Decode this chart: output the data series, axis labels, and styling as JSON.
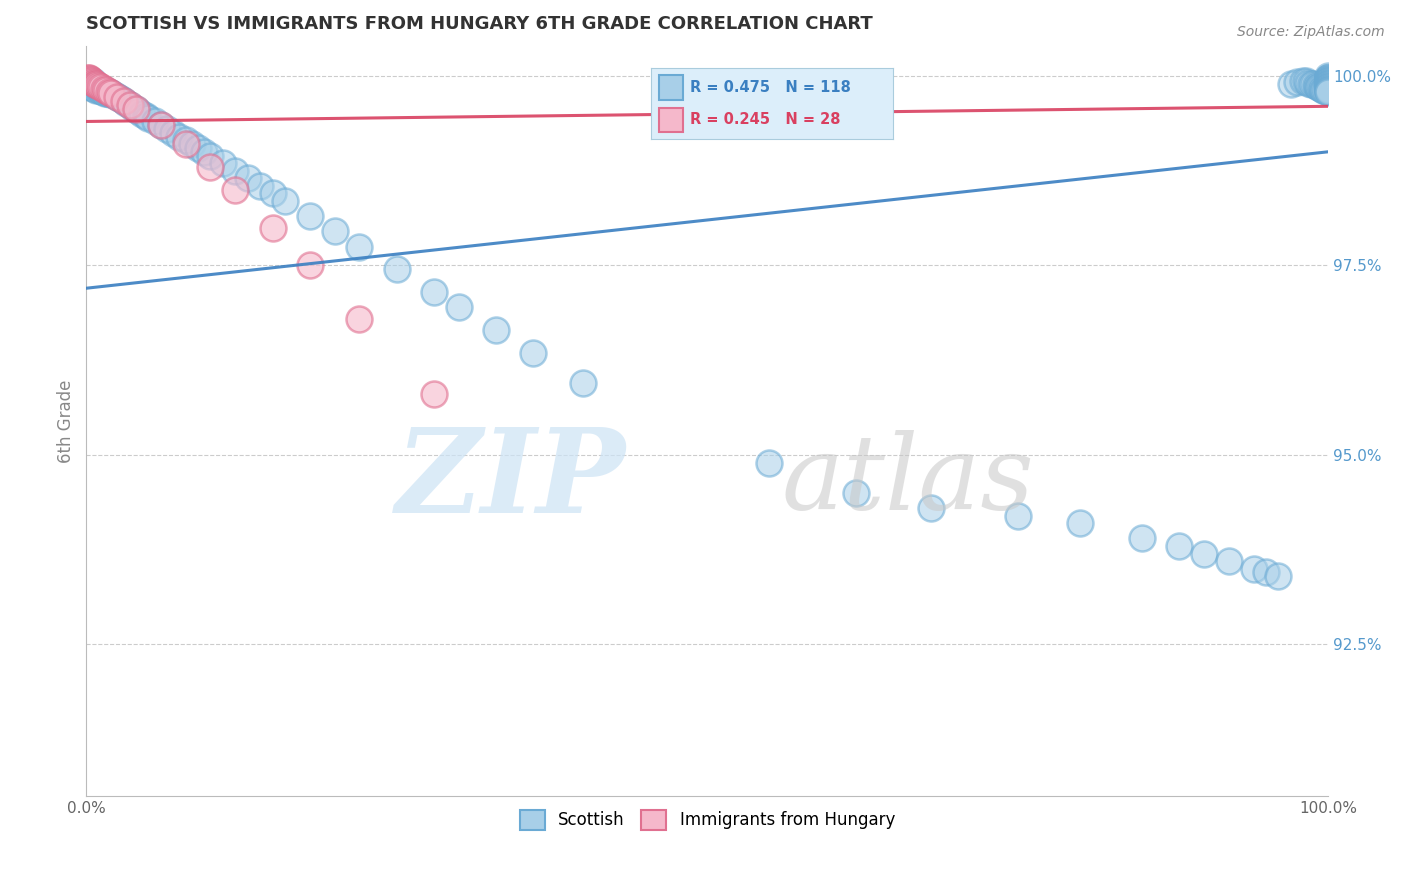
{
  "title": "SCOTTISH VS IMMIGRANTS FROM HUNGARY 6TH GRADE CORRELATION CHART",
  "source_text": "Source: ZipAtlas.com",
  "ylabel": "6th Grade",
  "legend_blue_label": "Scottish",
  "legend_pink_label": "Immigrants from Hungary",
  "legend_r_blue": "R = 0.475",
  "legend_n_blue": "N = 118",
  "legend_r_pink": "R = 0.245",
  "legend_n_pink": "N = 28",
  "blue_color": "#a8cfe8",
  "blue_edge": "#6aaad4",
  "pink_color": "#f5b8cb",
  "pink_edge": "#e07090",
  "blue_line_color": "#3a7fc1",
  "pink_line_color": "#d94060",
  "legend_bg": "#dceefa",
  "legend_text_blue": "#3a7fc1",
  "legend_text_pink": "#d94060",
  "right_tick_color": "#5599cc",
  "watermark_zip_color": "#cce0f0",
  "watermark_atlas_color": "#bbbbbb",
  "xlim": [
    0.0,
    1.0
  ],
  "ylim": [
    0.905,
    1.004
  ],
  "yticks": [
    1.0,
    0.975,
    0.95,
    0.925
  ],
  "ytick_labels": [
    "100.0%",
    "97.5%",
    "95.0%",
    "92.5%"
  ],
  "blue_x": [
    0.001,
    0.002,
    0.002,
    0.003,
    0.003,
    0.004,
    0.004,
    0.005,
    0.005,
    0.006,
    0.006,
    0.007,
    0.007,
    0.008,
    0.008,
    0.009,
    0.01,
    0.01,
    0.011,
    0.012,
    0.012,
    0.013,
    0.014,
    0.015,
    0.015,
    0.016,
    0.017,
    0.018,
    0.019,
    0.02,
    0.022,
    0.024,
    0.026,
    0.028,
    0.03,
    0.032,
    0.035,
    0.038,
    0.04,
    0.042,
    0.045,
    0.048,
    0.05,
    0.055,
    0.06,
    0.065,
    0.07,
    0.075,
    0.08,
    0.085,
    0.09,
    0.095,
    0.1,
    0.11,
    0.12,
    0.13,
    0.14,
    0.15,
    0.16,
    0.18,
    0.2,
    0.22,
    0.25,
    0.28,
    0.3,
    0.33,
    0.36,
    0.4,
    0.55,
    0.62,
    0.68,
    0.75,
    0.8,
    0.85,
    0.88,
    0.9,
    0.92,
    0.94,
    0.95,
    0.96,
    0.97,
    0.975,
    0.98,
    0.982,
    0.984,
    0.986,
    0.988,
    0.99,
    0.991,
    0.992,
    0.993,
    0.994,
    0.995,
    0.996,
    0.997,
    0.998,
    0.999,
    1.0,
    1.0,
    1.0,
    1.0,
    1.0,
    1.0,
    1.0,
    1.0,
    1.0,
    1.0,
    1.0,
    1.0,
    1.0,
    1.0,
    1.0,
    1.0,
    1.0,
    1.0,
    1.0,
    1.0,
    1.0
  ],
  "blue_y": [
    0.999,
    0.9992,
    0.9988,
    0.9991,
    0.9985,
    0.9989,
    0.9987,
    0.9993,
    0.9986,
    0.999,
    0.9984,
    0.9988,
    0.9983,
    0.9987,
    0.9982,
    0.9986,
    0.9985,
    0.9981,
    0.9984,
    0.9983,
    0.998,
    0.9982,
    0.9979,
    0.9981,
    0.9978,
    0.998,
    0.9977,
    0.9979,
    0.9976,
    0.9978,
    0.9975,
    0.9973,
    0.9971,
    0.9969,
    0.9967,
    0.9965,
    0.9962,
    0.9958,
    0.9956,
    0.9954,
    0.995,
    0.9947,
    0.9945,
    0.994,
    0.9935,
    0.993,
    0.9925,
    0.992,
    0.9915,
    0.991,
    0.9905,
    0.99,
    0.9895,
    0.9885,
    0.9875,
    0.9865,
    0.9855,
    0.9845,
    0.9835,
    0.9815,
    0.9795,
    0.9775,
    0.9745,
    0.9715,
    0.9695,
    0.9665,
    0.9635,
    0.9595,
    0.949,
    0.945,
    0.943,
    0.942,
    0.941,
    0.939,
    0.938,
    0.937,
    0.936,
    0.935,
    0.9345,
    0.934,
    0.999,
    0.9992,
    0.9994,
    0.9993,
    0.9991,
    0.999,
    0.9989,
    0.9988,
    0.9987,
    0.9986,
    0.9985,
    0.9984,
    0.9983,
    0.9982,
    0.9981,
    0.998,
    0.999,
    1.0,
    0.9998,
    0.9997,
    0.9996,
    0.9995,
    0.9994,
    0.9993,
    0.9992,
    0.9991,
    0.999,
    0.9989,
    0.9988,
    0.9987,
    0.9986,
    0.9985,
    0.9984,
    0.9983,
    0.9982,
    0.9981,
    0.998,
    0.9979
  ],
  "pink_x": [
    0.001,
    0.002,
    0.003,
    0.004,
    0.004,
    0.005,
    0.006,
    0.007,
    0.008,
    0.009,
    0.01,
    0.012,
    0.014,
    0.016,
    0.018,
    0.02,
    0.025,
    0.03,
    0.035,
    0.04,
    0.06,
    0.08,
    0.1,
    0.12,
    0.15,
    0.18,
    0.22,
    0.28
  ],
  "pink_y": [
    0.9998,
    0.9997,
    0.9996,
    0.9995,
    0.9993,
    0.9992,
    0.9991,
    0.999,
    0.9989,
    0.9988,
    0.9987,
    0.9985,
    0.9983,
    0.9981,
    0.9979,
    0.9977,
    0.9972,
    0.9967,
    0.9962,
    0.9957,
    0.9935,
    0.991,
    0.988,
    0.985,
    0.98,
    0.975,
    0.968,
    0.958
  ],
  "blue_trend_x0": 0.0,
  "blue_trend_y0": 0.972,
  "blue_trend_x1": 1.0,
  "blue_trend_y1": 0.99,
  "pink_trend_x0": 0.0,
  "pink_trend_y0": 0.994,
  "pink_trend_x1": 1.0,
  "pink_trend_y1": 0.996
}
